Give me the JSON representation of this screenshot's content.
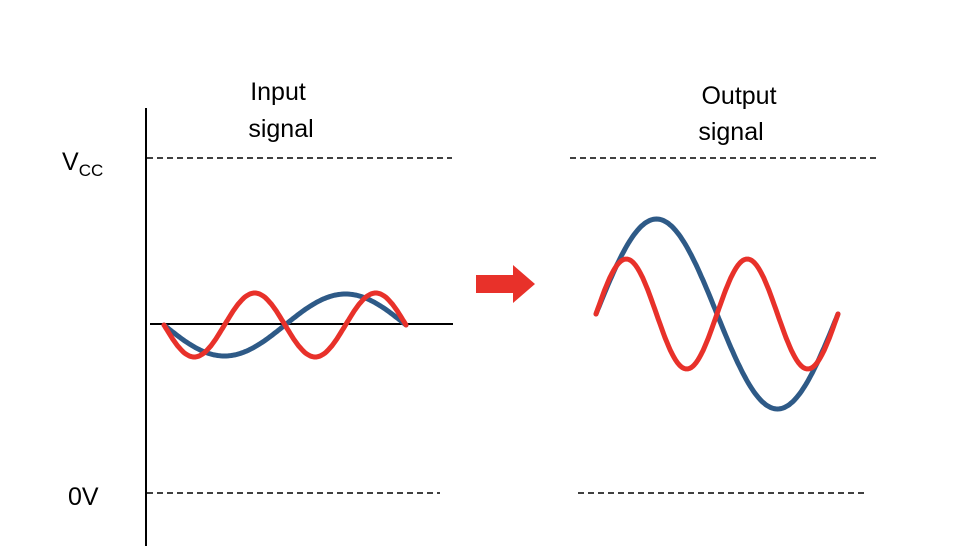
{
  "diagram": {
    "input_title_line1": "Input",
    "input_title_line2": "signal",
    "output_title_line1": "Output",
    "output_title_line2": "signal",
    "vcc_label_main": "V",
    "vcc_label_sub": "CC",
    "zero_label": "0V"
  },
  "colors": {
    "signal_a": "#2e5a87",
    "signal_b": "#e8312a",
    "arrow": "#e8312a",
    "axis": "#000000",
    "dashed": "#000000"
  },
  "icons": {
    "arrow": "arrow-right-icon"
  }
}
